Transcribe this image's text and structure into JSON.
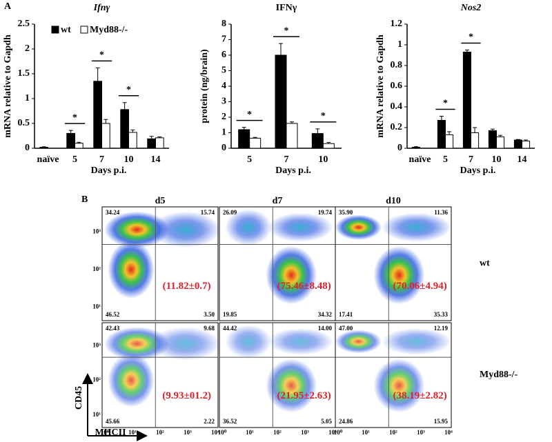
{
  "panel_labels": [
    "A",
    "B"
  ],
  "chart_data": [
    {
      "type": "bar",
      "title": "Ifnγ",
      "title_italic": true,
      "ylabel": "mRNA relative to Gapdh",
      "xlabel": "Days p.i.",
      "categories": [
        "naïve",
        "5",
        "7",
        "10",
        "14"
      ],
      "series": [
        {
          "name": "wt",
          "color": "#000000",
          "values": [
            0.02,
            0.3,
            1.35,
            0.78,
            0.19
          ],
          "errors": [
            0.01,
            0.06,
            0.27,
            0.14,
            0.05
          ]
        },
        {
          "name": "Myd88-/-",
          "color": "#ffffff",
          "values": [
            null,
            0.1,
            0.5,
            0.32,
            0.21
          ],
          "errors": [
            null,
            0.02,
            0.08,
            0.05,
            0.02
          ]
        }
      ],
      "ylim": [
        0,
        2.5
      ],
      "yticks": [
        0,
        0.5,
        1,
        1.5,
        2,
        2.5
      ],
      "legend": true,
      "annotations": [
        {
          "text": "*",
          "category": 1
        },
        {
          "text": "*",
          "category": 2
        },
        {
          "text": "*",
          "category": 3
        }
      ]
    },
    {
      "type": "bar",
      "title": "IFNγ",
      "title_italic": false,
      "ylabel": "protein (ng/brain)",
      "xlabel": "Days p.i.",
      "categories": [
        "5",
        "7",
        "10"
      ],
      "series": [
        {
          "name": "wt",
          "color": "#000000",
          "values": [
            1.2,
            6.0,
            0.95
          ],
          "errors": [
            0.15,
            0.75,
            0.3
          ]
        },
        {
          "name": "Myd88-/-",
          "color": "#ffffff",
          "values": [
            0.65,
            1.6,
            0.3
          ],
          "errors": [
            0.05,
            0.1,
            0.08
          ]
        }
      ],
      "ylim": [
        0,
        8
      ],
      "yticks": [
        0,
        1,
        2,
        3,
        4,
        5,
        6,
        7,
        8
      ],
      "legend": false,
      "annotations": [
        {
          "text": "*",
          "category": 0
        },
        {
          "text": "*",
          "category": 1
        },
        {
          "text": "*",
          "category": 2
        }
      ]
    },
    {
      "type": "bar",
      "title": "Nos2",
      "title_italic": true,
      "ylabel": "mRNA  relative to Gapdh",
      "xlabel": "Days p.i.",
      "categories": [
        "naïve",
        "5",
        "7",
        "10",
        "14"
      ],
      "series": [
        {
          "name": "wt",
          "color": "#000000",
          "values": [
            0.01,
            0.27,
            0.93,
            0.17,
            0.08
          ],
          "errors": [
            0.005,
            0.04,
            0.02,
            0.015,
            0.005
          ]
        },
        {
          "name": "Myd88-/-",
          "color": "#ffffff",
          "values": [
            null,
            0.13,
            0.15,
            0.11,
            0.07
          ],
          "errors": [
            null,
            0.03,
            0.05,
            0.015,
            0.01
          ]
        }
      ],
      "ylim": [
        0,
        1.2
      ],
      "yticks": [
        0,
        0.2,
        0.4,
        0.6,
        0.8,
        1,
        1.2
      ],
      "legend": false,
      "annotations": [
        {
          "text": "*",
          "category": 1
        },
        {
          "text": "*",
          "category": 2
        }
      ]
    }
  ],
  "flow": {
    "columns": [
      "d5",
      "d7",
      "d10"
    ],
    "ylabel": "CD45",
    "xlabel": "MHCII",
    "xticks": [
      "10⁰",
      "10¹",
      "10²",
      "10³",
      "10⁴"
    ],
    "yticks": [
      "10³",
      "10²",
      "10¹"
    ],
    "rows": [
      {
        "label": "wt",
        "plots": [
          {
            "quadrants": [
              "34.24",
              "15.74",
              "46.52",
              "3.50"
            ],
            "annotation": "(11.82±0.7)"
          },
          {
            "quadrants": [
              "26.09",
              "19.74",
              "19.85",
              "34.32"
            ],
            "annotation": "(75.46±8.48)"
          },
          {
            "quadrants": [
              "35.90",
              "11.36",
              "17.41",
              "35.33"
            ],
            "annotation": "(70.06±4.94)"
          }
        ]
      },
      {
        "label": "Myd88-/-",
        "plots": [
          {
            "quadrants": [
              "42.43",
              "9.68",
              "45.66",
              "2.22"
            ],
            "annotation": "(9.93±01.2)"
          },
          {
            "quadrants": [
              "44.42",
              "14.00",
              "36.52",
              "5.05"
            ],
            "annotation": "(21.95±2.63)"
          },
          {
            "quadrants": [
              "47.00",
              "12.19",
              "24.86",
              "15.95"
            ],
            "annotation": "(38.19±2.82)"
          }
        ]
      }
    ]
  }
}
